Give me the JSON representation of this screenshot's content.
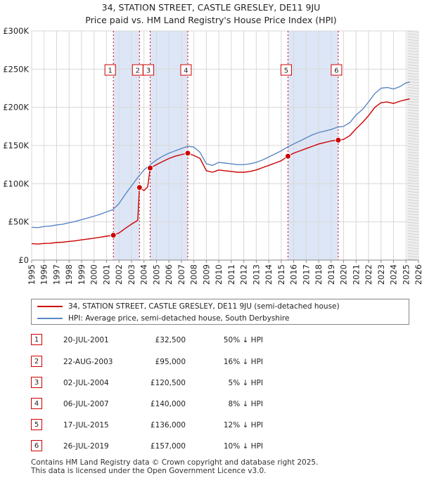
{
  "title_line1": "34, STATION STREET, CASTLE GRESLEY, DE11 9JU",
  "title_line2": "Price paid vs. HM Land Registry's House Price Index (HPI)",
  "colors": {
    "property": "#cc0000",
    "hpi": "#5b88c4",
    "shade": "#dde6f6"
  },
  "legend": {
    "property_label": "34, STATION STREET, CASTLE GRESLEY, DE11 9JU (semi-detached house)",
    "hpi_label": "HPI: Average price, semi-detached house, South Derbyshire"
  },
  "sales": [
    {
      "num": "1",
      "date": "20-JUL-2001",
      "price": "£32,500",
      "pct": "50% ↓ HPI"
    },
    {
      "num": "2",
      "date": "22-AUG-2003",
      "price": "£95,000",
      "pct": "16% ↓ HPI"
    },
    {
      "num": "3",
      "date": "02-JUL-2004",
      "price": "£120,500",
      "pct": "5% ↓ HPI"
    },
    {
      "num": "4",
      "date": "06-JUL-2007",
      "price": "£140,000",
      "pct": "8% ↓ HPI"
    },
    {
      "num": "5",
      "date": "17-JUL-2015",
      "price": "£136,000",
      "pct": "12% ↓ HPI"
    },
    {
      "num": "6",
      "date": "26-JUL-2019",
      "price": "£157,000",
      "pct": "10% ↓ HPI"
    }
  ],
  "footer_line1": "Contains HM Land Registry data © Crown copyright and database right 2025.",
  "footer_line2": "This data is licensed under the Open Government Licence v3.0.",
  "chart_data": {
    "type": "line",
    "xlim": [
      1995,
      2026
    ],
    "ylim": [
      0,
      300000
    ],
    "yticks": [
      0,
      50000,
      100000,
      150000,
      200000,
      250000,
      300000
    ],
    "ytick_labels": [
      "£0",
      "£50K",
      "£100K",
      "£150K",
      "£200K",
      "£250K",
      "£300K"
    ],
    "xticks": [
      1995,
      1996,
      1997,
      1998,
      1999,
      2000,
      2001,
      2002,
      2003,
      2004,
      2005,
      2006,
      2007,
      2008,
      2009,
      2010,
      2011,
      2012,
      2013,
      2014,
      2015,
      2016,
      2017,
      2018,
      2019,
      2020,
      2021,
      2022,
      2023,
      2024,
      2025,
      2026
    ],
    "grid": true,
    "shaded_ranges": [
      [
        2001.55,
        2003.64
      ],
      [
        2004.5,
        2007.51
      ],
      [
        2015.54,
        2019.57
      ]
    ],
    "forecast_from": 2025.1,
    "sale_markers": [
      {
        "label": "1",
        "x": 2001.55,
        "y": 32500
      },
      {
        "label": "2",
        "x": 2003.64,
        "y": 95000
      },
      {
        "label": "3",
        "x": 2004.5,
        "y": 120500
      },
      {
        "label": "4",
        "x": 2007.51,
        "y": 140000
      },
      {
        "label": "5",
        "x": 2015.54,
        "y": 136000
      },
      {
        "label": "6",
        "x": 2019.57,
        "y": 157000
      }
    ],
    "series": [
      {
        "name": "HPI: Average price, semi-detached house, South Derbyshire",
        "x": [
          1995,
          1995.5,
          1996,
          1996.5,
          1997,
          1997.5,
          1998,
          1998.5,
          1999,
          1999.5,
          2000,
          2000.5,
          2001,
          2001.5,
          2002,
          2002.5,
          2003,
          2003.5,
          2004,
          2004.5,
          2005,
          2005.5,
          2006,
          2006.5,
          2007,
          2007.5,
          2008,
          2008.5,
          2009,
          2009.5,
          2010,
          2010.5,
          2011,
          2011.5,
          2012,
          2012.5,
          2013,
          2013.5,
          2014,
          2014.5,
          2015,
          2015.5,
          2016,
          2016.5,
          2017,
          2017.5,
          2018,
          2018.5,
          2019,
          2019.5,
          2020,
          2020.5,
          2021,
          2021.5,
          2022,
          2022.5,
          2023,
          2023.5,
          2024,
          2024.5,
          2025,
          2025.3
        ],
        "values": [
          43000,
          42500,
          44000,
          44500,
          46000,
          47000,
          49000,
          50500,
          53000,
          55000,
          57500,
          60000,
          63000,
          66000,
          74000,
          86000,
          97000,
          108000,
          118000,
          125000,
          131000,
          136000,
          140000,
          143000,
          146000,
          149000,
          148000,
          141000,
          126000,
          124000,
          128000,
          127000,
          126000,
          125000,
          125000,
          126000,
          128000,
          131000,
          135000,
          139000,
          143000,
          148000,
          152000,
          156000,
          160000,
          164000,
          167000,
          169000,
          171000,
          174000,
          175000,
          180000,
          190000,
          197000,
          207000,
          218000,
          225000,
          226000,
          224000,
          227000,
          232000,
          233000
        ]
      },
      {
        "name": "34, STATION STREET, CASTLE GRESLEY, DE11 9JU (semi-detached house)",
        "x": [
          1995,
          1995.5,
          1996,
          1996.5,
          1997,
          1997.5,
          1998,
          1998.5,
          1999,
          1999.5,
          2000,
          2000.5,
          2001,
          2001.55,
          2002,
          2002.5,
          2003,
          2003.5,
          2003.64,
          2004,
          2004.3,
          2004.5,
          2005,
          2005.5,
          2006,
          2006.5,
          2007,
          2007.51,
          2008,
          2008.5,
          2009,
          2009.5,
          2010,
          2010.5,
          2011,
          2011.5,
          2012,
          2012.5,
          2013,
          2013.5,
          2014,
          2014.5,
          2015,
          2015.54,
          2016,
          2016.5,
          2017,
          2017.5,
          2018,
          2018.5,
          2019,
          2019.57,
          2020,
          2020.5,
          2021,
          2021.5,
          2022,
          2022.5,
          2023,
          2023.5,
          2024,
          2024.5,
          2025,
          2025.3
        ],
        "values": [
          21500,
          21000,
          21800,
          22000,
          23000,
          23500,
          24500,
          25200,
          26500,
          27500,
          28700,
          30000,
          31300,
          32500,
          35500,
          41500,
          47000,
          52000,
          95000,
          91000,
          96000,
          120500,
          125000,
          129000,
          133000,
          136000,
          138000,
          140000,
          137000,
          133000,
          117000,
          115000,
          118000,
          117000,
          116000,
          115000,
          115000,
          116000,
          118000,
          121000,
          124000,
          127000,
          130000,
          136000,
          140000,
          143000,
          146000,
          149000,
          152000,
          154000,
          156000,
          157000,
          158000,
          163000,
          172000,
          180000,
          189000,
          200000,
          206000,
          207000,
          205000,
          208000,
          210000,
          211000
        ]
      }
    ]
  }
}
